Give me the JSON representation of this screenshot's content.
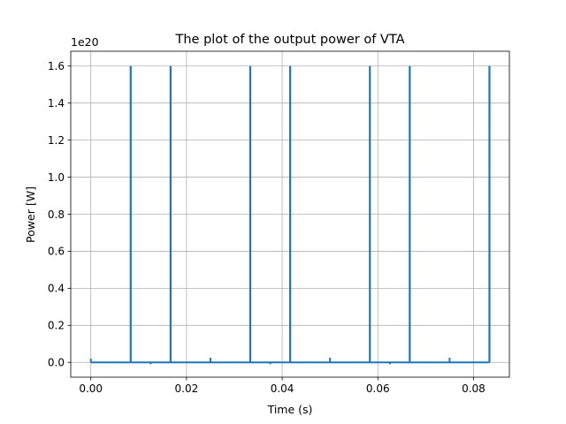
{
  "chart_data": {
    "type": "line",
    "title": "The plot of the output power of VTA",
    "xlabel": "Time (s)",
    "ylabel": "Power [W]",
    "y_offset_label": "1e20",
    "xlim": [
      -0.0042,
      0.0875
    ],
    "ylim": [
      -0.08,
      1.68
    ],
    "y_scale": 1e+20,
    "grid": true,
    "line_color": "#1f77b4",
    "x_ticks": [
      0.0,
      0.02,
      0.04,
      0.06,
      0.08
    ],
    "x_tick_labels": [
      "0.00",
      "0.02",
      "0.04",
      "0.06",
      "0.08"
    ],
    "y_ticks": [
      0.0,
      0.2,
      0.4,
      0.6,
      0.8,
      1.0,
      1.2,
      1.4,
      1.6
    ],
    "y_tick_labels": [
      "0.0",
      "0.2",
      "0.4",
      "0.6",
      "0.8",
      "1.0",
      "1.2",
      "1.4",
      "1.6"
    ],
    "baseline": 0.0,
    "series": [
      {
        "spikes_x": [
          0.00833,
          0.01667,
          0.03333,
          0.04167,
          0.05833,
          0.06667,
          0.08333
        ],
        "spikes_y": [
          1.6,
          1.6,
          1.6,
          1.6,
          1.6,
          1.6,
          1.6
        ],
        "small_marks_x": [
          0.0,
          0.0125,
          0.025,
          0.0375,
          0.05,
          0.0625,
          0.075
        ],
        "small_marks_y": [
          0.02,
          -0.01,
          0.025,
          -0.01,
          0.025,
          -0.01,
          0.025
        ],
        "x_end": 0.08333
      }
    ]
  }
}
